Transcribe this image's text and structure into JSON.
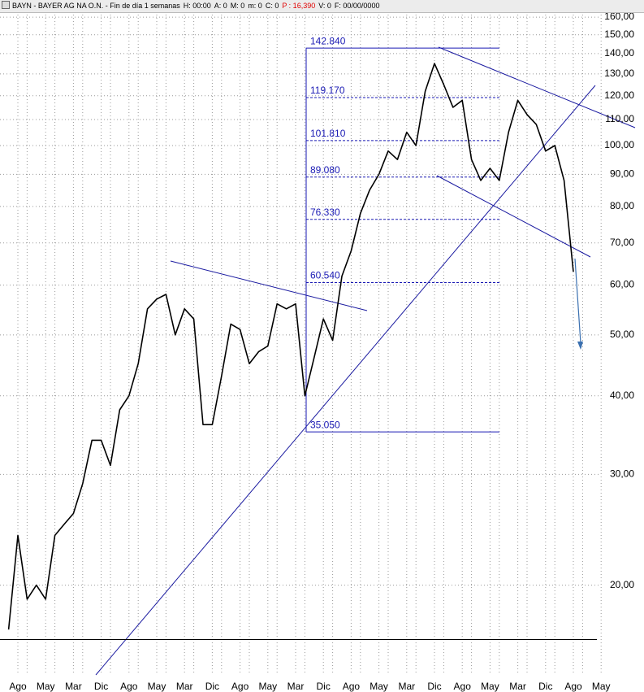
{
  "header": {
    "items": [
      {
        "text": "BAYN - BAYER AG NA O.N. - Fin de día 1 semanas"
      },
      {
        "text": "H: 00:00"
      },
      {
        "text": "A: 0"
      },
      {
        "text": "M: 0"
      },
      {
        "text": "m: 0"
      },
      {
        "text": "C: 0"
      },
      {
        "text": "P : 16,390",
        "color": "#e00000"
      },
      {
        "text": "V: 0"
      },
      {
        "text": "F: 00/00/0000"
      }
    ]
  },
  "chart_data": {
    "type": "line",
    "log_scale": true,
    "grid": true,
    "ylim": [
      14.4,
      163.4
    ],
    "yticks": [
      {
        "value": 20,
        "label": "20,00"
      },
      {
        "value": 30,
        "label": "30,00"
      },
      {
        "value": 40,
        "label": "40,00"
      },
      {
        "value": 50,
        "label": "50,00"
      },
      {
        "value": 60,
        "label": "60,00"
      },
      {
        "value": 70,
        "label": "70,00"
      },
      {
        "value": 80,
        "label": "80,00"
      },
      {
        "value": 90,
        "label": "90,00"
      },
      {
        "value": 100,
        "label": "100,00"
      },
      {
        "value": 110,
        "label": "110,00"
      },
      {
        "value": 120,
        "label": "120,00"
      },
      {
        "value": 130,
        "label": "130,00"
      },
      {
        "value": 140,
        "label": "140,00"
      },
      {
        "value": 150,
        "label": "150,00"
      },
      {
        "value": 160,
        "label": "160,00"
      }
    ],
    "categories": [
      null,
      "Ago",
      null,
      null,
      "May",
      null,
      null,
      "Mar",
      null,
      null,
      "Dic",
      null,
      null,
      "Ago",
      null,
      null,
      "May",
      null,
      null,
      "Mar",
      null,
      null,
      "Dic",
      null,
      null,
      "Ago",
      null,
      null,
      "May",
      null,
      null,
      "Mar",
      null,
      null,
      "Dic",
      null,
      null,
      "Ago",
      null,
      null,
      "May",
      null,
      null,
      "Mar",
      null,
      null,
      "Dic",
      null,
      null,
      "Ago",
      null,
      null,
      "May",
      null,
      null,
      "Mar",
      null,
      null,
      "Dic",
      null,
      null,
      "Ago",
      null,
      null,
      "May"
    ],
    "series": [
      {
        "color": "#000000",
        "values": [
          17,
          24,
          19,
          20,
          19,
          24,
          25,
          26,
          29,
          34,
          34,
          31,
          38,
          40,
          45,
          55,
          57,
          58,
          50,
          55,
          53,
          36,
          36,
          43,
          52,
          51,
          45,
          47,
          48,
          56,
          55,
          56,
          40,
          46,
          53,
          49,
          62,
          68,
          78,
          85,
          90,
          98,
          95,
          105,
          100,
          122,
          135,
          125,
          115,
          118,
          95,
          88,
          92,
          88,
          105,
          118,
          112,
          108,
          98,
          100,
          88,
          63,
          null,
          null,
          null
        ]
      }
    ],
    "price_line": 16.39,
    "levels": [
      {
        "value": 142.84,
        "label": "142.840"
      },
      {
        "value": 119.17,
        "label": "119.170"
      },
      {
        "value": 101.81,
        "label": "101.810"
      },
      {
        "value": 89.08,
        "label": "89.080"
      },
      {
        "value": 76.33,
        "label": "76.330"
      },
      {
        "value": 60.54,
        "label": "60.540"
      },
      {
        "value": 35.05,
        "label": "35.050"
      }
    ],
    "level_color": "#1a1ab4"
  }
}
